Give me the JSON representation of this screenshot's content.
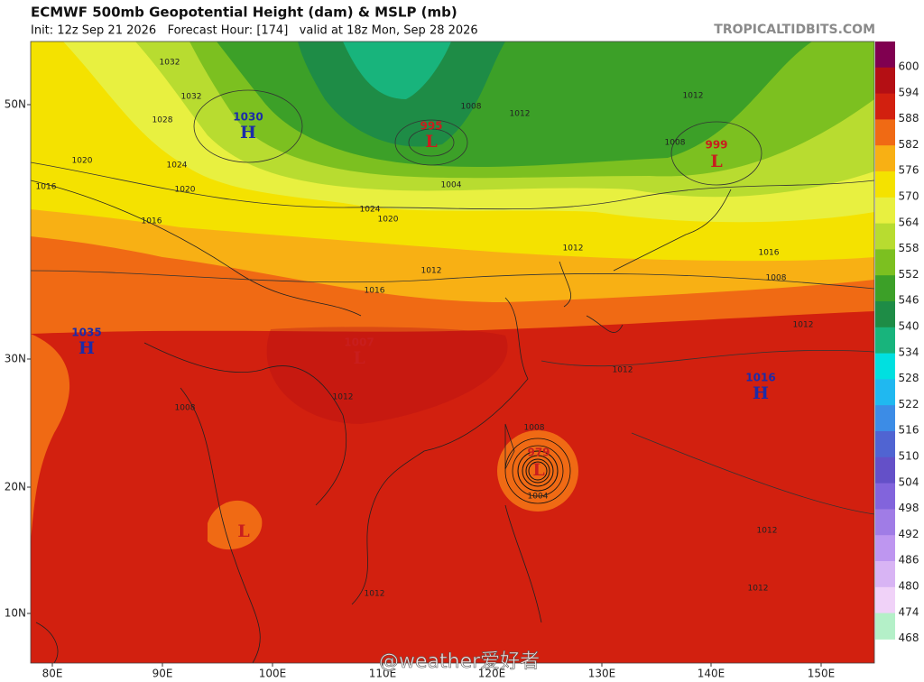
{
  "header": {
    "title": "ECMWF 500mb Geopotential Height (dam) & MSLP (mb)",
    "subtitle": "Init: 12z Sep 21 2026   Forecast Hour: [174]   valid at 18z Mon, Sep 28 2026",
    "source": "TROPICALTIDBITS.COM"
  },
  "colorbar": {
    "labels": [
      "600",
      "594",
      "588",
      "582",
      "576",
      "570",
      "564",
      "558",
      "552",
      "546",
      "540",
      "534",
      "528",
      "522",
      "516",
      "510",
      "504",
      "498",
      "492",
      "486",
      "480",
      "474",
      "468"
    ],
    "colors": [
      "#800050",
      "#b40f14",
      "#d2200f",
      "#f06a14",
      "#f8b014",
      "#f4e200",
      "#e8f040",
      "#b8dc30",
      "#7cc020",
      "#3ca028",
      "#1e8c46",
      "#18b47c",
      "#00e0e0",
      "#20b8f0",
      "#3c8ce6",
      "#5064d2",
      "#6450c8",
      "#8264dc",
      "#a07ce6",
      "#be96f0",
      "#d8b4f4",
      "#f0d2f8",
      "#b4f0c8"
    ]
  },
  "axes": {
    "lat": [
      "50N",
      "30N",
      "20N",
      "10N"
    ],
    "lon": [
      "80E",
      "90E",
      "100E",
      "110E",
      "120E",
      "130E",
      "140E",
      "150E"
    ]
  },
  "centers": [
    {
      "letter": "H",
      "label": "1030",
      "color": "#1c2ca8"
    },
    {
      "letter": "L",
      "label": "995",
      "color": "#c81e1e"
    },
    {
      "letter": "L",
      "label": "999",
      "color": "#c81e1e"
    },
    {
      "letter": "H",
      "label": "1035",
      "color": "#1c2ca8"
    },
    {
      "letter": "L",
      "label": "1007",
      "color": "#c81e1e"
    },
    {
      "letter": "H",
      "label": "1016",
      "color": "#1c2ca8"
    },
    {
      "letter": "L",
      "label": "979",
      "color": "#c81e1e"
    },
    {
      "letter": "L",
      "color": "#c81e1e"
    }
  ],
  "isobars": [
    "1032",
    "1032",
    "1028",
    "1024",
    "1020",
    "1016",
    "1020",
    "1016",
    "1012",
    "1008",
    "1004",
    "1012",
    "1008",
    "1012",
    "1016",
    "1012",
    "1008",
    "1008",
    "1004",
    "1012",
    "1008",
    "1012",
    "1012",
    "1012",
    "1016",
    "1020",
    "1024",
    "1012",
    "1012"
  ],
  "watermark": "@weather爱好者"
}
